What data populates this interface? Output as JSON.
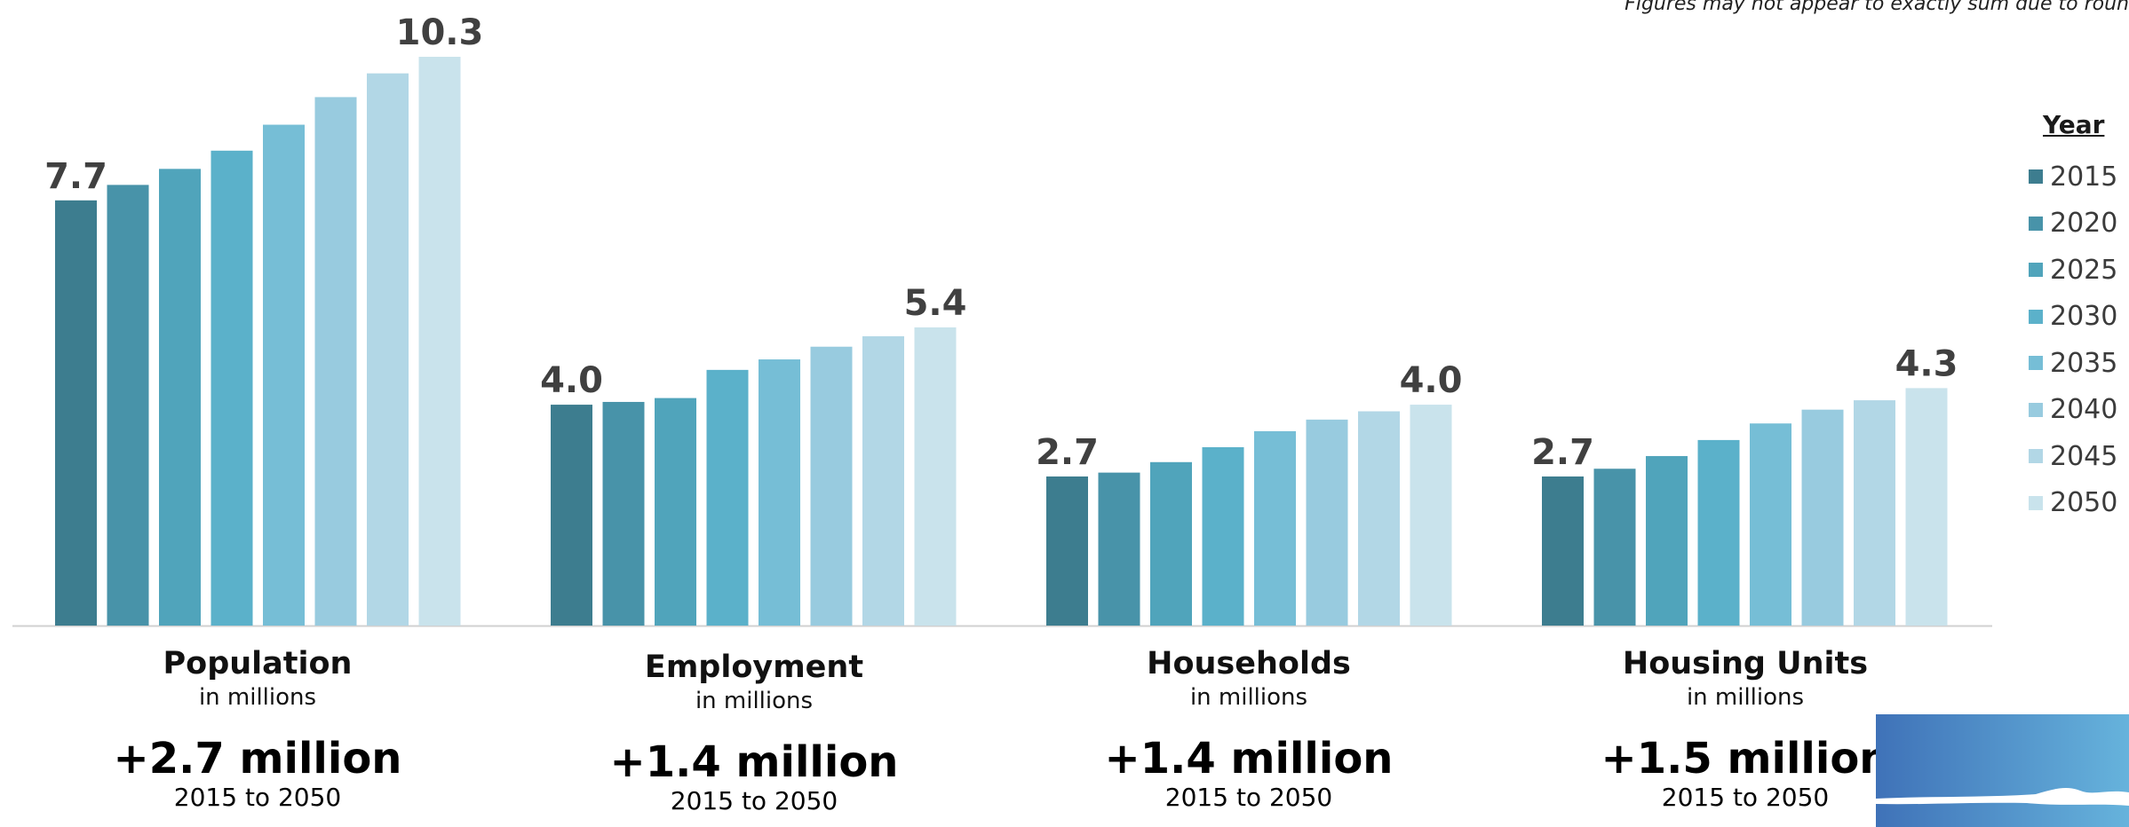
{
  "note": "Figures may not appear to exactly sum due to roun",
  "chart_data": {
    "type": "bar",
    "categories": [
      "Population",
      "Employment",
      "Households",
      "Housing Units"
    ],
    "series": [
      {
        "name": "2015",
        "color": "#3d7d8f",
        "values": [
          7.7,
          4.0,
          2.7,
          2.7
        ]
      },
      {
        "name": "2020",
        "color": "#4893a9",
        "values": [
          7.98,
          4.05,
          2.77,
          2.84
        ]
      },
      {
        "name": "2025",
        "color": "#50a4bb",
        "values": [
          8.27,
          4.12,
          2.96,
          3.07
        ]
      },
      {
        "name": "2030",
        "color": "#5bb1ca",
        "values": [
          8.6,
          4.63,
          3.23,
          3.36
        ]
      },
      {
        "name": "2035",
        "color": "#76bed6",
        "values": [
          9.07,
          4.82,
          3.52,
          3.66
        ]
      },
      {
        "name": "2040",
        "color": "#98cbdf",
        "values": [
          9.57,
          5.05,
          3.73,
          3.91
        ]
      },
      {
        "name": "2045",
        "color": "#b2d7e6",
        "values": [
          10.0,
          5.24,
          3.88,
          4.08
        ]
      },
      {
        "name": "2050",
        "color": "#c9e3ec",
        "values": [
          10.3,
          5.4,
          4.0,
          4.3
        ]
      }
    ],
    "data_labels": [
      {
        "category": 0,
        "series": 0,
        "text": "7.7"
      },
      {
        "category": 0,
        "series": 7,
        "text": "10.3"
      },
      {
        "category": 1,
        "series": 0,
        "text": "4.0"
      },
      {
        "category": 1,
        "series": 7,
        "text": "5.4"
      },
      {
        "category": 2,
        "series": 0,
        "text": "2.7"
      },
      {
        "category": 2,
        "series": 7,
        "text": "4.0"
      },
      {
        "category": 3,
        "series": 0,
        "text": "2.7"
      },
      {
        "category": 3,
        "series": 7,
        "text": "4.3"
      }
    ],
    "ylim": [
      0,
      10.3
    ],
    "grid": false,
    "legend": {
      "title": "Year",
      "position": "right"
    }
  },
  "categories_info": [
    {
      "name": "Population",
      "unit": "in millions",
      "change": "+2.7 million",
      "range": "2015 to 2050"
    },
    {
      "name": "Employment",
      "unit": "in millions",
      "change": "+1.4 million",
      "range": "2015 to 2050"
    },
    {
      "name": "Households",
      "unit": "in millions",
      "change": "+1.4 million",
      "range": "2015 to 2050"
    },
    {
      "name": "Housing Units",
      "unit": "in millions",
      "change": "+1.5 million",
      "range": "2015 to 2050"
    }
  ]
}
